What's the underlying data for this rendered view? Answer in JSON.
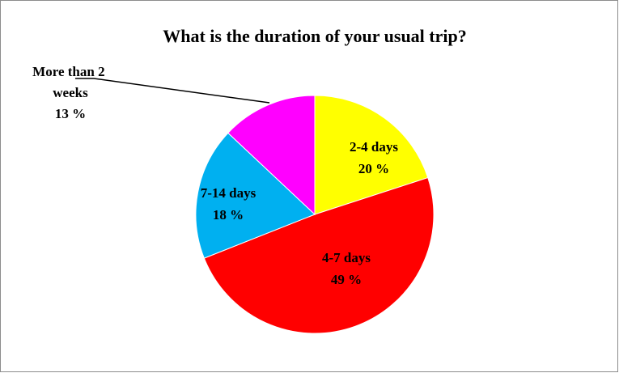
{
  "chart_data": {
    "type": "pie",
    "title": "What is the duration of your usual trip?",
    "categories": [
      "2-4 days",
      "4-7 days",
      "7-14 days",
      "More than 2 weeks"
    ],
    "values": [
      20,
      49,
      18,
      13
    ],
    "value_labels": [
      "20 %",
      "49 %",
      "18 %",
      "13 %"
    ],
    "colors": [
      "#ffff00",
      "#ff0000",
      "#00b0f0",
      "#ff00ff"
    ]
  }
}
